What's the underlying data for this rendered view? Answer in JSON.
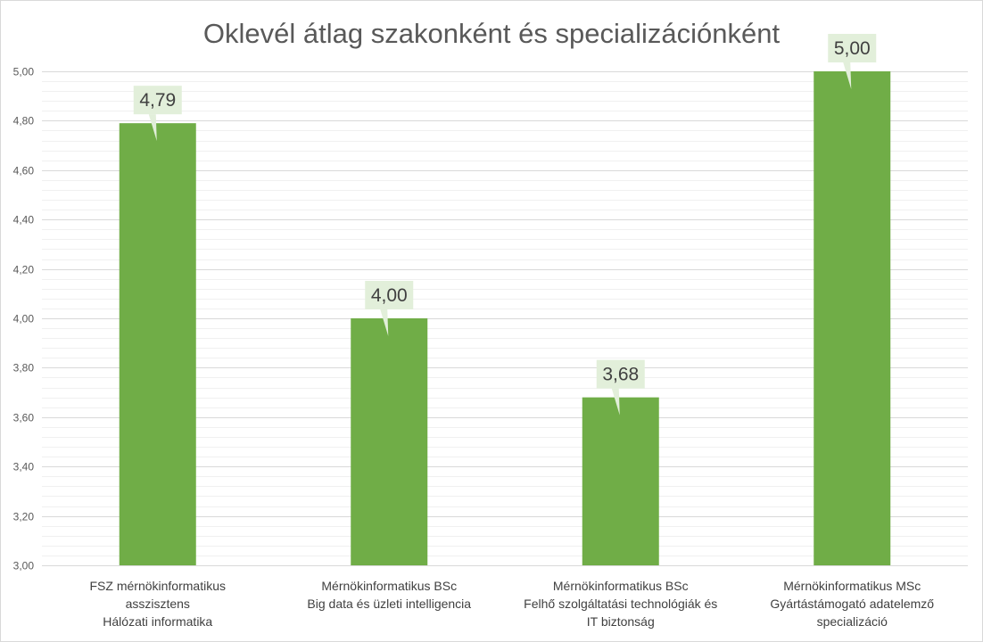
{
  "chart_data": {
    "type": "bar",
    "title": "Oklevél átlag szakonként és specializációnként",
    "categories": [
      [
        "FSZ mérnökinformatikus",
        "asszisztens",
        "Hálózati informatika"
      ],
      [
        "Mérnökinformatikus BSc",
        "Big data és üzleti intelligencia"
      ],
      [
        "Mérnökinformatikus BSc",
        "Felhő szolgáltatási technológiák és",
        "IT biztonság"
      ],
      [
        "Mérnökinformatikus  MSc",
        "Gyártástámogató adatelemző",
        "specializáció"
      ]
    ],
    "values": [
      4.79,
      4.0,
      3.68,
      5.0
    ],
    "data_labels": [
      "4,79",
      "4,00",
      "3,68",
      "5,00"
    ],
    "y_ticks": [
      "3,00",
      "3,20",
      "3,40",
      "3,60",
      "3,80",
      "4,00",
      "4,20",
      "4,40",
      "4,60",
      "4,80",
      "5,00"
    ],
    "ylim": [
      3.0,
      5.0
    ],
    "major_step": 0.2,
    "minor_step": 0.04,
    "grid": true,
    "legend": "none",
    "xlabel": "",
    "ylabel": "",
    "colors": {
      "bar": "#70ad47",
      "callout": "#e2efda",
      "major_grid": "#d9d9d9",
      "minor_grid": "#f0f0f0",
      "axis_text": "#595959",
      "label_text": "#404040",
      "category_text": "#404040"
    }
  }
}
